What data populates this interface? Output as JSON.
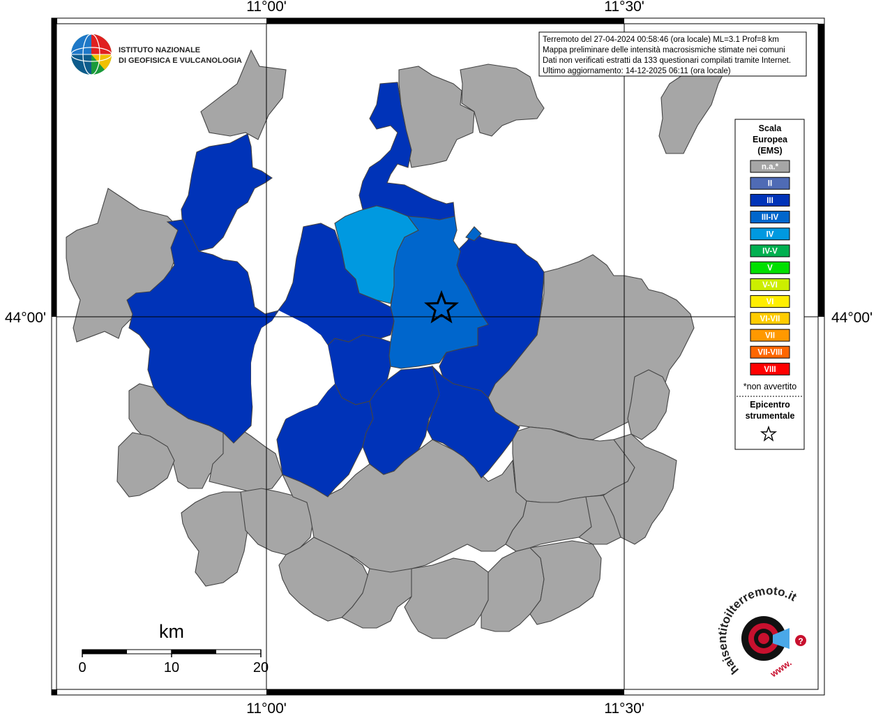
{
  "info_box": {
    "line1": "Terremoto del 27-04-2024 00:58:46 (ora locale) ML=3.1 Prof=8 km",
    "line2": "Mappa preliminare delle intensità macrosismiche stimate nei comuni",
    "line3": "Dati non verificati estratti da 133 questionari compilati tramite Internet.",
    "line4": "Ultimo aggiornamento: 14-12-2025 06:11 (ora locale)"
  },
  "logo_ingv": {
    "line1": "ISTITUTO NAZIONALE",
    "line2": "DI GEOFISICA E VULCANOLOGIA"
  },
  "axes": {
    "top_left": "11°00'",
    "top_right": "11°30'",
    "bottom_left": "11°00'",
    "bottom_right": "11°30'",
    "left_lat": "44°00'",
    "right_lat": "44°00'"
  },
  "legend": {
    "title1": "Scala",
    "title2": "Europea",
    "title3": "(EMS)",
    "items": [
      {
        "label": "n.a.*",
        "color": "#a6a6a6"
      },
      {
        "label": "II",
        "color": "#4f6bb5"
      },
      {
        "label": "III",
        "color": "#0033b8"
      },
      {
        "label": "III-IV",
        "color": "#0066cc"
      },
      {
        "label": "IV",
        "color": "#0099e0"
      },
      {
        "label": "IV-V",
        "color": "#00b050"
      },
      {
        "label": "V",
        "color": "#00e000"
      },
      {
        "label": "V-VI",
        "color": "#ccee00"
      },
      {
        "label": "VI",
        "color": "#ffee00"
      },
      {
        "label": "VI-VII",
        "color": "#ffcc00"
      },
      {
        "label": "VII",
        "color": "#ff9900"
      },
      {
        "label": "VII-VIII",
        "color": "#ff6600"
      },
      {
        "label": "VIII",
        "color": "#ff0000"
      }
    ],
    "note": "*non avvertito",
    "epicenter1": "Epicentro",
    "epicenter2": "strumentale"
  },
  "scale_bar": {
    "unit": "km",
    "tick0": "0",
    "tick1": "10",
    "tick2": "20"
  },
  "haisentito_logo": {
    "text": "haisentitoilterremoto.it",
    "www": "www."
  }
}
